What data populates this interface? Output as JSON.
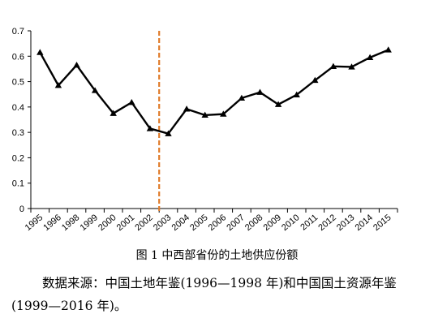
{
  "chart_data": {
    "type": "line",
    "categories": [
      "1995",
      "1996",
      "1998",
      "1999",
      "2000",
      "2001",
      "2002",
      "2003",
      "2004",
      "2005",
      "2006",
      "2007",
      "2008",
      "2009",
      "2010",
      "2011",
      "2012",
      "2013",
      "2014",
      "2015"
    ],
    "series": [
      {
        "values": [
          0.615,
          0.485,
          0.565,
          0.465,
          0.375,
          0.418,
          0.315,
          0.295,
          0.392,
          0.368,
          0.372,
          0.435,
          0.458,
          0.41,
          0.448,
          0.505,
          0.56,
          0.558,
          0.595,
          0.625
        ]
      }
    ],
    "ylim": [
      0,
      0.7
    ],
    "yticks": [
      "0",
      "0.1",
      "0.2",
      "0.3",
      "0.4",
      "0.5",
      "0.6",
      "0.7"
    ],
    "vline_after_category": "2002",
    "line_color": "#000000",
    "vline_color": "#e07b2a",
    "marker": "triangle"
  },
  "caption": "图 1  中西部省份的土地供应份额",
  "note": "数据来源：中国土地年鉴(1996—1998 年)和中国国土资源年鉴(1999—2016 年)。"
}
